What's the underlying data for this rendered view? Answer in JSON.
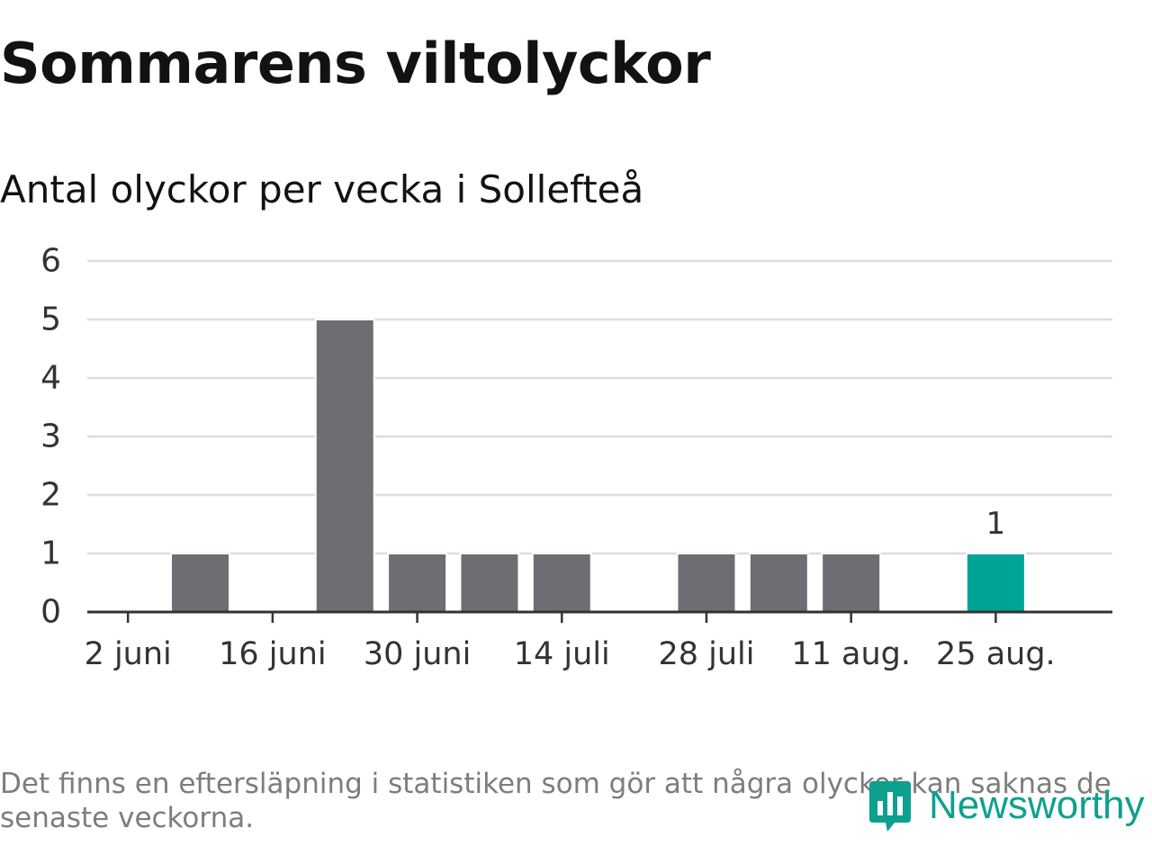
{
  "title": "Sommarens viltolyckor",
  "subtitle": "Antal olyckor per vecka i Sollefteå",
  "footnote": "Det finns en eftersläpning i statistiken som gör att några olyckor kan saknas de senaste veckorna.",
  "brand": "Newsworthy",
  "colors": {
    "bar": "#6e6d73",
    "highlight": "#00a398",
    "grid": "#dcdcdc",
    "axis": "#333333",
    "text": "#333333",
    "brand": "#0da08f"
  },
  "chart_data": {
    "type": "bar",
    "title": "Sommarens viltolyckor",
    "subtitle": "Antal olyckor per vecka i Sollefteå",
    "x": [
      "2 juni",
      "9 juni",
      "16 juni",
      "23 juni",
      "30 juni",
      "7 juli",
      "14 juli",
      "21 juli",
      "28 juli",
      "4 aug.",
      "11 aug.",
      "18 aug.",
      "25 aug."
    ],
    "values": [
      0,
      1,
      0,
      5,
      1,
      1,
      1,
      0,
      1,
      1,
      1,
      0,
      1
    ],
    "x_tick_labels": [
      "2 juni",
      "16 juni",
      "30 juni",
      "14 juli",
      "28 juli",
      "11 aug.",
      "25 aug."
    ],
    "highlight_index": 12,
    "data_labels": [
      {
        "index": 12,
        "text": "1"
      }
    ],
    "ylim": [
      0,
      6
    ],
    "yticks": [
      0,
      1,
      2,
      3,
      4,
      5,
      6
    ],
    "grid": true,
    "legend": "none"
  }
}
